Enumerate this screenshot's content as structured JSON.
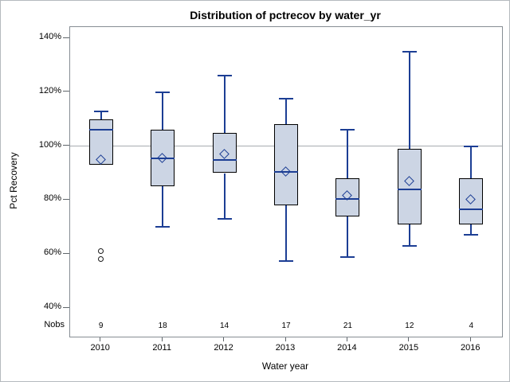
{
  "labels": {
    "nobs": "Nobs"
  },
  "colors": {
    "box_fill": "#ccd5e4",
    "box_border": "#000000",
    "line_blue": "#1c3e94",
    "reference_line": "#a7acb1",
    "frame_border": "#868d94",
    "tick": "#5f656a",
    "outlier": "#1a1a1a",
    "outer_border": "#b5babe",
    "text": "#000000"
  },
  "chart_data": {
    "type": "boxplot",
    "title": "Distribution of pctrecov by water_yr",
    "xlabel": "Water year",
    "ylabel": "Pct Recovery",
    "ylim": [
      40,
      140
    ],
    "y_ticks": [
      140,
      120,
      100,
      80,
      60,
      40
    ],
    "y_tick_labels": [
      "140%",
      "120%",
      "100%",
      "80%",
      "60%",
      "40%"
    ],
    "y_tick_format": "percent",
    "reference_line": 100,
    "grid": false,
    "legend": "none",
    "categories": [
      "2010",
      "2011",
      "2012",
      "2013",
      "2014",
      "2015",
      "2016"
    ],
    "nobs": [
      9,
      18,
      14,
      17,
      21,
      12,
      4
    ],
    "boxes": [
      {
        "year": "2010",
        "nobs": 9,
        "whisker_low": 93,
        "q1": 93,
        "median": 106,
        "q3": 110,
        "whisker_high": 113,
        "mean": 95,
        "outliers": [
          61,
          58
        ]
      },
      {
        "year": "2011",
        "nobs": 18,
        "whisker_low": 70,
        "q1": 85,
        "median": 95.5,
        "q3": 106,
        "whisker_high": 120,
        "mean": 95.5,
        "outliers": []
      },
      {
        "year": "2012",
        "nobs": 14,
        "whisker_low": 73,
        "q1": 90,
        "median": 95,
        "q3": 105,
        "whisker_high": 126,
        "mean": 97,
        "outliers": []
      },
      {
        "year": "2013",
        "nobs": 17,
        "whisker_low": 57.5,
        "q1": 78,
        "median": 90.5,
        "q3": 108,
        "whisker_high": 117.5,
        "mean": 90.5,
        "outliers": []
      },
      {
        "year": "2014",
        "nobs": 21,
        "whisker_low": 59,
        "q1": 74,
        "median": 80.5,
        "q3": 88,
        "whisker_high": 106,
        "mean": 81.5,
        "outliers": []
      },
      {
        "year": "2015",
        "nobs": 12,
        "whisker_low": 63,
        "q1": 71,
        "median": 84,
        "q3": 99,
        "whisker_high": 135,
        "mean": 87,
        "outliers": []
      },
      {
        "year": "2016",
        "nobs": 4,
        "whisker_low": 67,
        "q1": 71,
        "median": 76.5,
        "q3": 88,
        "whisker_high": 100,
        "mean": 80,
        "outliers": []
      }
    ]
  }
}
